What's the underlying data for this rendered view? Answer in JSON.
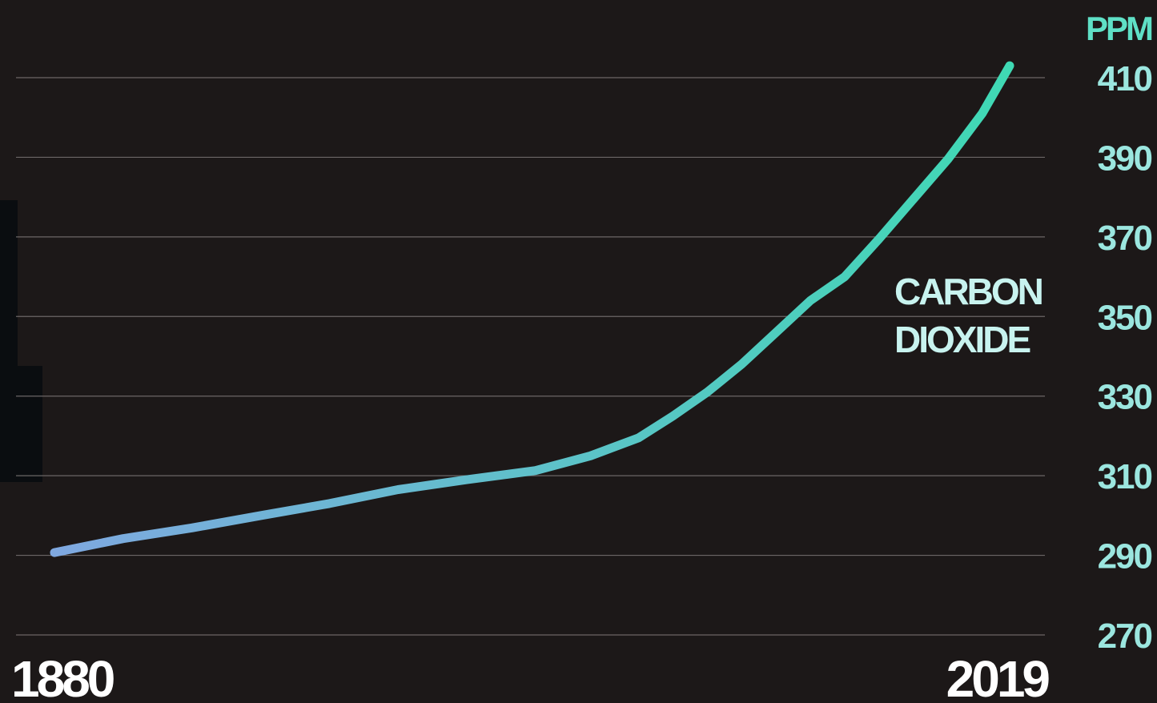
{
  "chart_data": {
    "type": "line",
    "title": "",
    "xlabel": "",
    "ylabel": "PPM",
    "x_tick_labels": [
      "1880",
      "2019"
    ],
    "xlim": [
      1880,
      2019
    ],
    "ylim": [
      270,
      410
    ],
    "y_ticks": [
      270,
      290,
      310,
      330,
      350,
      370,
      390,
      410
    ],
    "grid": true,
    "line_gradient": [
      "#7fa8e0",
      "#3fd9b4"
    ],
    "annotation": [
      "CARBON",
      "DIOXIDE"
    ],
    "series": [
      {
        "name": "CARBON DIOXIDE",
        "x": [
          1880,
          1890,
          1900,
          1910,
          1920,
          1930,
          1940,
          1950,
          1958,
          1965,
          1970,
          1975,
          1980,
          1985,
          1990,
          1995,
          2000,
          2005,
          2010,
          2015,
          2019
        ],
        "y": [
          290.7,
          294.2,
          296.9,
          300.0,
          303.0,
          306.5,
          309.0,
          311.3,
          315.0,
          319.5,
          325.0,
          331.0,
          338.0,
          346.0,
          354.0,
          360.0,
          369.5,
          379.5,
          389.5,
          401.0,
          413.0
        ]
      }
    ]
  }
}
